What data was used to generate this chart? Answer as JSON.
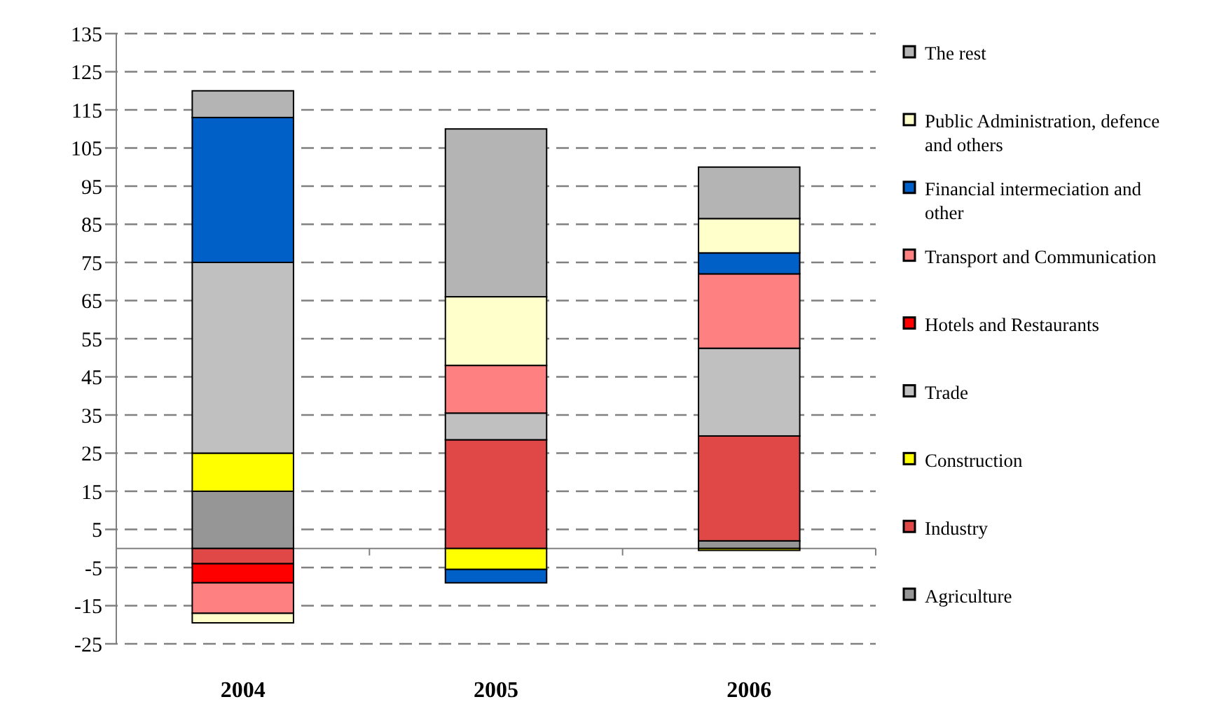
{
  "chart_data": {
    "type": "bar",
    "stacked": true,
    "categories": [
      "2004",
      "2005",
      "2006"
    ],
    "series": [
      {
        "name": "Agriculture",
        "color": "#969696",
        "values": [
          15,
          0,
          2
        ]
      },
      {
        "name": "Industry",
        "color": "#e04848",
        "values": [
          -4,
          28.5,
          27.5
        ]
      },
      {
        "name": "Construction",
        "color": "#ffff00",
        "values": [
          10,
          -5.5,
          -0.5
        ]
      },
      {
        "name": "Trade",
        "color": "#c0c0c0",
        "values": [
          50,
          7,
          23
        ]
      },
      {
        "name": "Hotels and Restaurants",
        "color": "#ff0000",
        "values": [
          -5,
          0,
          0
        ]
      },
      {
        "name": "Transport and Communication",
        "color": "#ff8080",
        "values": [
          -8,
          12.5,
          19.5
        ]
      },
      {
        "name": "Financial intermeciation and other",
        "color": "#0060c8",
        "values": [
          38,
          -3.5,
          5.5
        ]
      },
      {
        "name": "Public Administration, defence and others",
        "color": "#ffffcc",
        "values": [
          -2.5,
          18,
          9
        ]
      },
      {
        "name": "The rest",
        "color": "#b4b4b4",
        "values": [
          7,
          44,
          13.5
        ]
      }
    ],
    "ylim": [
      -25,
      135
    ],
    "yticks": [
      -25,
      -15,
      -5,
      5,
      15,
      25,
      35,
      45,
      55,
      65,
      75,
      85,
      95,
      105,
      115,
      125,
      135
    ],
    "grid": "y",
    "legend": "right"
  }
}
